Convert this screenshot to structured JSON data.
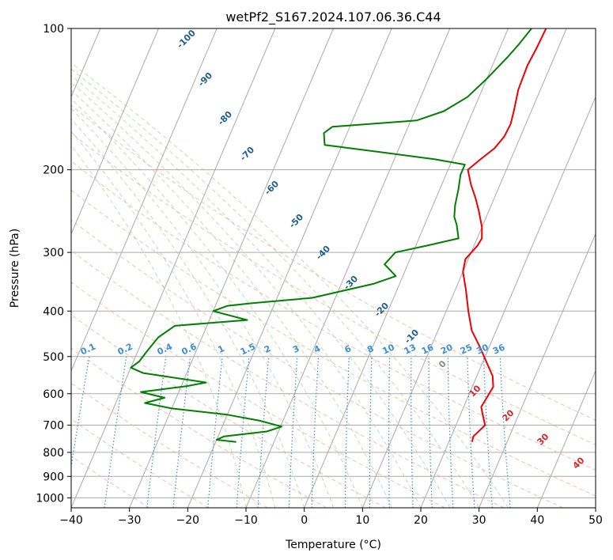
{
  "chart_data": {
    "type": "line",
    "title": "wetPf2_S167.2024.107.06.36.C44",
    "xlabel": "Temperature (°C)",
    "ylabel": "Pressure (hPa)",
    "xlim": [
      -40,
      50
    ],
    "ylim": [
      1050,
      100
    ],
    "y_scale": "log",
    "x_ticks": [
      -40,
      -30,
      -20,
      -10,
      0,
      10,
      20,
      30,
      40,
      50
    ],
    "x_tick_labels": [
      "−40",
      "−30",
      "−20",
      "−10",
      "0",
      "10",
      "20",
      "30",
      "40",
      "50"
    ],
    "y_ticks": [
      1000,
      900,
      800,
      700,
      600,
      500,
      400,
      300,
      200,
      100
    ],
    "y_tick_labels": [
      "1000",
      "900",
      "800",
      "700",
      "600",
      "500",
      "400",
      "300",
      "200",
      "100"
    ],
    "grid": true,
    "series": [
      {
        "color": "#ee0000",
        "points": [
          [
            24.0,
            760
          ],
          [
            23.8,
            740
          ],
          [
            24.4,
            720
          ],
          [
            25.0,
            700
          ],
          [
            24.0,
            670
          ],
          [
            23.0,
            640
          ],
          [
            23.3,
            610
          ],
          [
            23.6,
            580
          ],
          [
            22.7,
            550
          ],
          [
            21.0,
            520
          ],
          [
            18.6,
            480
          ],
          [
            15.8,
            440
          ],
          [
            13.8,
            400
          ],
          [
            11.8,
            360
          ],
          [
            10.0,
            330
          ],
          [
            9.5,
            310
          ],
          [
            10.6,
            290
          ],
          [
            10.8,
            280
          ],
          [
            10.0,
            265
          ],
          [
            8.3,
            245
          ],
          [
            6.8,
            230
          ],
          [
            5.0,
            215
          ],
          [
            3.4,
            200
          ],
          [
            4.8,
            190
          ],
          [
            6.4,
            180
          ],
          [
            7.2,
            170
          ],
          [
            7.4,
            160
          ],
          [
            7.0,
            150
          ],
          [
            6.2,
            135
          ],
          [
            6.0,
            120
          ],
          [
            6.3,
            110
          ],
          [
            6.5,
            100
          ]
        ]
      },
      {
        "color": "#008000",
        "points": [
          [
            -16.5,
            760
          ],
          [
            -20.0,
            752
          ],
          [
            -19.0,
            740
          ],
          [
            -12.0,
            722
          ],
          [
            -9.8,
            705
          ],
          [
            -14.0,
            685
          ],
          [
            -20.0,
            665
          ],
          [
            -30.0,
            645
          ],
          [
            -35.0,
            628
          ],
          [
            -32.0,
            612
          ],
          [
            -36.5,
            595
          ],
          [
            -29.0,
            578
          ],
          [
            -26.0,
            568
          ],
          [
            -37.5,
            542
          ],
          [
            -40.0,
            528
          ],
          [
            -39.0,
            512
          ],
          [
            -38.5,
            490
          ],
          [
            -37.5,
            455
          ],
          [
            -35.5,
            430
          ],
          [
            -23.5,
            418
          ],
          [
            -30.0,
            400
          ],
          [
            -28.0,
            390
          ],
          [
            -24.0,
            385
          ],
          [
            -14.0,
            375
          ],
          [
            -4.5,
            350
          ],
          [
            -1.2,
            337
          ],
          [
            -4.0,
            318
          ],
          [
            -3.0,
            300
          ],
          [
            2.0,
            290
          ],
          [
            6.8,
            280
          ],
          [
            5.5,
            262
          ],
          [
            4.5,
            252
          ],
          [
            3.8,
            238
          ],
          [
            3.2,
            220
          ],
          [
            2.5,
            205
          ],
          [
            2.5,
            195
          ],
          [
            -3.0,
            190
          ],
          [
            -12.0,
            184
          ],
          [
            -23.0,
            177
          ],
          [
            -24.0,
            167
          ],
          [
            -23.0,
            162
          ],
          [
            -9.0,
            157
          ],
          [
            -5.0,
            150
          ],
          [
            -2.0,
            140
          ],
          [
            0.0,
            128
          ],
          [
            2.0,
            115
          ],
          [
            3.0,
            108
          ],
          [
            4.0,
            100
          ]
        ]
      }
    ],
    "dry_adiabat_labels": [
      "-100",
      "-90",
      "-80",
      "-70",
      "-60",
      "-50",
      "-40",
      "-30",
      "-20",
      "-10",
      "0",
      "10",
      "20",
      "30",
      "40"
    ],
    "mixing_ratio_labels": [
      "0.1",
      "0.2",
      "0.4",
      "0.6",
      "1",
      "1.5",
      "2",
      "3",
      "4",
      "6",
      "8",
      "10",
      "13",
      "16",
      "20",
      "25",
      "30",
      "36"
    ]
  }
}
